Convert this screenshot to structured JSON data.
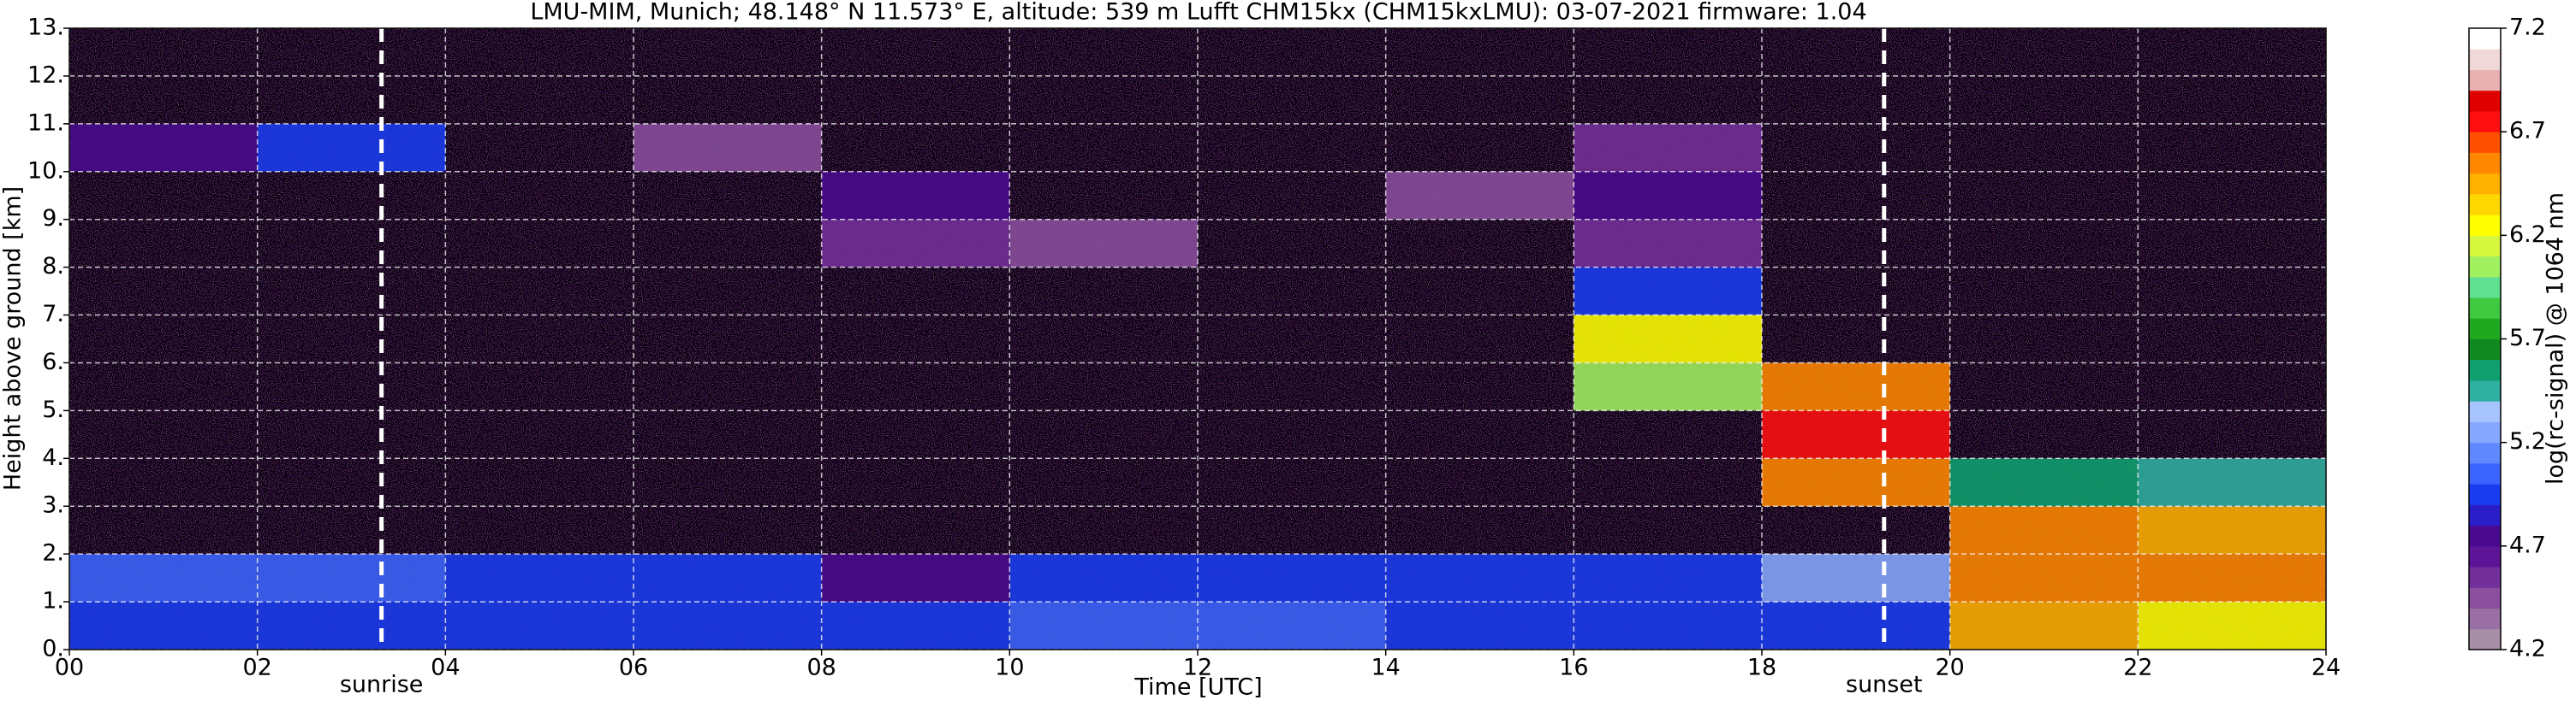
{
  "chart_data": {
    "type": "heatmap",
    "title": "LMU-MIM, Munich; 48.148° N 11.573° E, altitude: 539 m    Lufft CHM15kx (CHM15kxLMU): 03-07-2021    firmware: 1.04",
    "x_label": "Time [UTC]",
    "y_label": "Height above ground [km]",
    "colorbar_label": "log(rc-signal) @ 1064 nm",
    "xlim": [
      0,
      24
    ],
    "xticks": [
      {
        "value": 0,
        "label": "00"
      },
      {
        "value": 2,
        "label": "02"
      },
      {
        "value": 4,
        "label": "04"
      },
      {
        "value": 6,
        "label": "06"
      },
      {
        "value": 8,
        "label": "08"
      },
      10,
      12,
      14,
      16,
      18,
      20,
      22,
      24
    ],
    "ylim": [
      0,
      13
    ],
    "yticks": [
      {
        "value": 0,
        "label": "0."
      },
      {
        "value": 1,
        "label": "1."
      },
      {
        "value": 2,
        "label": "2."
      },
      {
        "value": 3,
        "label": "3."
      },
      {
        "value": 4,
        "label": "4."
      },
      {
        "value": 5,
        "label": "5."
      },
      {
        "value": 6,
        "label": "6."
      },
      {
        "value": 7,
        "label": "7."
      },
      {
        "value": 8,
        "label": "8."
      },
      {
        "value": 9,
        "label": "9."
      },
      {
        "value": 10,
        "label": "10."
      },
      {
        "value": 11,
        "label": "11."
      },
      {
        "value": 12,
        "label": "12."
      },
      {
        "value": 13,
        "label": "13."
      }
    ],
    "grid": true,
    "x_edges": [
      0,
      2,
      4,
      6,
      8,
      10,
      12,
      14,
      16,
      18,
      20,
      22,
      24
    ],
    "y_edges": [
      0,
      1,
      2,
      3,
      4,
      5,
      6,
      7,
      8,
      9,
      10,
      11,
      12,
      13
    ],
    "z": [
      [
        4.9,
        4.9,
        4.9,
        4.9,
        5.0,
        5.1,
        5.1,
        5.0,
        4.9,
        5.0,
        6.4,
        6.3
      ],
      [
        5.1,
        5.1,
        5.0,
        4.9,
        4.8,
        5.0,
        5.0,
        5.0,
        5.0,
        5.2,
        6.5,
        6.5
      ],
      [
        4.0,
        4.0,
        4.0,
        4.0,
        4.0,
        4.0,
        4.0,
        4.0,
        4.0,
        4.0,
        6.6,
        6.4
      ],
      [
        4.0,
        4.0,
        4.0,
        4.0,
        4.0,
        4.0,
        4.0,
        4.0,
        4.0,
        6.5,
        5.6,
        5.4
      ],
      [
        4.0,
        4.0,
        4.0,
        4.0,
        4.0,
        4.0,
        4.0,
        4.0,
        4.0,
        6.8,
        4.0,
        4.0
      ],
      [
        4.0,
        4.0,
        4.0,
        4.0,
        4.0,
        4.0,
        4.0,
        4.0,
        6.0,
        6.5,
        4.0,
        4.0
      ],
      [
        4.0,
        4.0,
        4.0,
        4.0,
        4.0,
        4.0,
        4.0,
        4.0,
        6.2,
        4.0,
        4.0,
        4.0
      ],
      [
        4.0,
        4.0,
        4.0,
        4.0,
        4.0,
        4.0,
        4.0,
        4.0,
        5.0,
        4.0,
        4.0,
        4.0
      ],
      [
        4.0,
        4.0,
        4.0,
        4.0,
        4.6,
        4.4,
        4.0,
        4.0,
        4.6,
        4.0,
        4.0,
        4.0
      ],
      [
        4.0,
        4.0,
        4.0,
        4.0,
        4.7,
        4.0,
        4.0,
        4.5,
        4.7,
        4.0,
        4.0,
        4.0
      ],
      [
        4.8,
        5.0,
        4.0,
        4.5,
        4.0,
        4.0,
        4.0,
        4.0,
        4.6,
        4.0,
        4.0,
        4.0
      ],
      [
        4.0,
        4.0,
        4.0,
        4.0,
        4.0,
        4.0,
        4.0,
        4.0,
        4.0,
        4.0,
        4.0,
        4.0
      ],
      [
        4.0,
        4.0,
        4.0,
        4.0,
        4.0,
        4.0,
        4.0,
        4.0,
        4.0,
        4.0,
        4.0,
        4.0
      ]
    ],
    "clim": [
      4.2,
      7.2
    ],
    "cticks": [
      4.2,
      4.7,
      5.2,
      5.7,
      6.2,
      6.7,
      7.2
    ],
    "colormap": [
      "#a88fa8",
      "#9a6fa6",
      "#8a4f9e",
      "#74309a",
      "#5e1496",
      "#4a0a90",
      "#2a1ec8",
      "#1a3cf0",
      "#3c64ff",
      "#6088ff",
      "#86a8ff",
      "#a8c4ff",
      "#30b0a0",
      "#10a070",
      "#108a20",
      "#20a820",
      "#40c840",
      "#60e090",
      "#a0f060",
      "#d8f840",
      "#ffff00",
      "#ffd800",
      "#ffb000",
      "#ff8800",
      "#ff5000",
      "#ff1010",
      "#e00000",
      "#e8b0b0",
      "#f0d8d8",
      "#ffffff"
    ],
    "annotations": [
      {
        "label": "sunrise",
        "x": 3.32
      },
      {
        "label": "sunset",
        "x": 19.3
      }
    ]
  }
}
